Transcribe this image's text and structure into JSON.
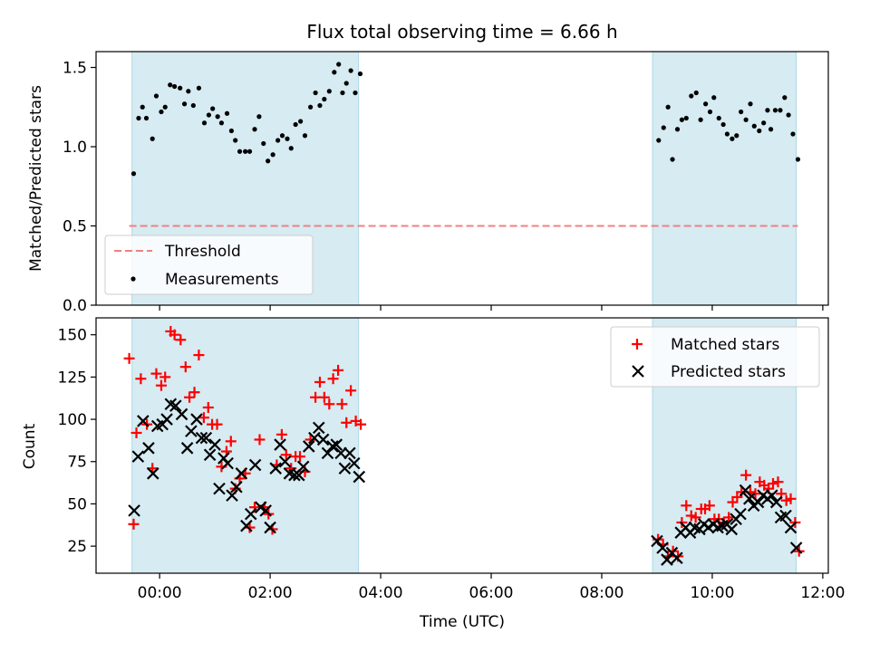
{
  "title": "Flux total observing time = 6.66 h",
  "xlabel": "Time (UTC)",
  "x_ticks": [
    "00:00",
    "02:00",
    "04:00",
    "06:00",
    "08:00",
    "10:00",
    "12:00"
  ],
  "chart_data": [
    {
      "type": "scatter",
      "title": "Flux total observing time = 6.66 h",
      "ylabel": "Matched/Predicted stars",
      "xlabel": "",
      "x_unit": "hours (UTC)",
      "xlim": [
        -1.15,
        12.1
      ],
      "ylim": [
        0,
        1.6
      ],
      "yticks": [
        "0.0",
        "0.5",
        "1.0",
        "1.5"
      ],
      "legend": {
        "position": "lower-left",
        "entries": [
          "Threshold",
          "Measurements"
        ]
      },
      "shaded_intervals": [
        [
          -0.5,
          3.6
        ],
        [
          8.92,
          11.52
        ]
      ],
      "threshold": {
        "name": "Threshold",
        "value": 0.5,
        "x_range": [
          -0.55,
          11.55
        ],
        "color": "#f08080"
      },
      "measurements": {
        "name": "Measurements",
        "color": "#000000",
        "points": [
          [
            -0.47,
            0.83
          ],
          [
            -0.38,
            1.18
          ],
          [
            -0.31,
            1.25
          ],
          [
            -0.24,
            1.18
          ],
          [
            -0.13,
            1.05
          ],
          [
            -0.06,
            1.32
          ],
          [
            0.03,
            1.22
          ],
          [
            0.1,
            1.25
          ],
          [
            0.19,
            1.39
          ],
          [
            0.27,
            1.38
          ],
          [
            0.37,
            1.37
          ],
          [
            0.45,
            1.27
          ],
          [
            0.52,
            1.35
          ],
          [
            0.61,
            1.26
          ],
          [
            0.71,
            1.37
          ],
          [
            0.81,
            1.15
          ],
          [
            0.89,
            1.2
          ],
          [
            0.96,
            1.24
          ],
          [
            1.05,
            1.19
          ],
          [
            1.12,
            1.15
          ],
          [
            1.22,
            1.21
          ],
          [
            1.3,
            1.1
          ],
          [
            1.37,
            1.04
          ],
          [
            1.45,
            0.97
          ],
          [
            1.55,
            0.97
          ],
          [
            1.63,
            0.97
          ],
          [
            1.72,
            1.11
          ],
          [
            1.8,
            1.19
          ],
          [
            1.88,
            1.02
          ],
          [
            1.96,
            0.91
          ],
          [
            2.05,
            0.95
          ],
          [
            2.14,
            1.04
          ],
          [
            2.22,
            1.07
          ],
          [
            2.31,
            1.05
          ],
          [
            2.38,
            0.99
          ],
          [
            2.46,
            1.14
          ],
          [
            2.55,
            1.16
          ],
          [
            2.63,
            1.07
          ],
          [
            2.73,
            1.25
          ],
          [
            2.82,
            1.34
          ],
          [
            2.9,
            1.26
          ],
          [
            2.98,
            1.3
          ],
          [
            3.07,
            1.35
          ],
          [
            3.16,
            1.47
          ],
          [
            3.24,
            1.52
          ],
          [
            3.31,
            1.34
          ],
          [
            3.38,
            1.4
          ],
          [
            3.46,
            1.48
          ],
          [
            3.54,
            1.34
          ],
          [
            3.63,
            1.46
          ],
          [
            9.03,
            1.04
          ],
          [
            9.12,
            1.12
          ],
          [
            9.2,
            1.25
          ],
          [
            9.28,
            0.92
          ],
          [
            9.37,
            1.11
          ],
          [
            9.45,
            1.17
          ],
          [
            9.53,
            1.18
          ],
          [
            9.62,
            1.32
          ],
          [
            9.71,
            1.34
          ],
          [
            9.79,
            1.17
          ],
          [
            9.88,
            1.27
          ],
          [
            9.96,
            1.22
          ],
          [
            10.03,
            1.31
          ],
          [
            10.12,
            1.18
          ],
          [
            10.2,
            1.14
          ],
          [
            10.27,
            1.08
          ],
          [
            10.36,
            1.05
          ],
          [
            10.44,
            1.07
          ],
          [
            10.52,
            1.22
          ],
          [
            10.61,
            1.17
          ],
          [
            10.69,
            1.27
          ],
          [
            10.76,
            1.13
          ],
          [
            10.85,
            1.1
          ],
          [
            10.93,
            1.15
          ],
          [
            11.0,
            1.23
          ],
          [
            11.06,
            1.11
          ],
          [
            11.14,
            1.23
          ],
          [
            11.23,
            1.23
          ],
          [
            11.31,
            1.31
          ],
          [
            11.38,
            1.2
          ],
          [
            11.46,
            1.08
          ],
          [
            11.55,
            0.92
          ]
        ]
      }
    },
    {
      "type": "scatter",
      "ylabel": "Count",
      "xlabel": "Time (UTC)",
      "x_unit": "hours (UTC)",
      "xlim": [
        -1.15,
        12.1
      ],
      "ylim": [
        9,
        160
      ],
      "yticks": [
        "25",
        "50",
        "75",
        "100",
        "125",
        "150"
      ],
      "legend": {
        "position": "top-right",
        "entries": [
          "Matched stars",
          "Predicted stars"
        ]
      },
      "shaded_intervals": [
        [
          -0.5,
          3.6
        ],
        [
          8.92,
          11.52
        ]
      ],
      "series": [
        {
          "name": "Matched stars",
          "marker": "+",
          "color": "#ff0000",
          "points": [
            [
              -0.55,
              136
            ],
            [
              -0.47,
              38
            ],
            [
              -0.42,
              92
            ],
            [
              -0.34,
              124
            ],
            [
              -0.23,
              97
            ],
            [
              -0.13,
              71
            ],
            [
              -0.06,
              127
            ],
            [
              0.03,
              120
            ],
            [
              0.1,
              125
            ],
            [
              0.2,
              152
            ],
            [
              0.27,
              150
            ],
            [
              0.38,
              147
            ],
            [
              0.47,
              131
            ],
            [
              0.54,
              113
            ],
            [
              0.63,
              116
            ],
            [
              0.71,
              138
            ],
            [
              0.8,
              101
            ],
            [
              0.88,
              107
            ],
            [
              0.95,
              97
            ],
            [
              1.04,
              97
            ],
            [
              1.12,
              72
            ],
            [
              1.21,
              81
            ],
            [
              1.29,
              87
            ],
            [
              1.37,
              59
            ],
            [
              1.45,
              65
            ],
            [
              1.55,
              68
            ],
            [
              1.63,
              36
            ],
            [
              1.72,
              48
            ],
            [
              1.81,
              88
            ],
            [
              1.9,
              48
            ],
            [
              1.97,
              44
            ],
            [
              2.04,
              35
            ],
            [
              2.12,
              73
            ],
            [
              2.21,
              91
            ],
            [
              2.29,
              79
            ],
            [
              2.38,
              71
            ],
            [
              2.46,
              78
            ],
            [
              2.54,
              78
            ],
            [
              2.63,
              69
            ],
            [
              2.73,
              88
            ],
            [
              2.82,
              113
            ],
            [
              2.9,
              122
            ],
            [
              2.98,
              113
            ],
            [
              3.07,
              109
            ],
            [
              3.14,
              124
            ],
            [
              3.23,
              129
            ],
            [
              3.3,
              109
            ],
            [
              3.38,
              98
            ],
            [
              3.46,
              117
            ],
            [
              3.55,
              99
            ],
            [
              3.64,
              97
            ],
            [
              9.02,
              29
            ],
            [
              9.11,
              26
            ],
            [
              9.2,
              19
            ],
            [
              9.29,
              22
            ],
            [
              9.38,
              19
            ],
            [
              9.45,
              39
            ],
            [
              9.53,
              49
            ],
            [
              9.62,
              43
            ],
            [
              9.7,
              42
            ],
            [
              9.8,
              47
            ],
            [
              9.87,
              47
            ],
            [
              9.95,
              49
            ],
            [
              10.04,
              41
            ],
            [
              10.12,
              41
            ],
            [
              10.21,
              39
            ],
            [
              10.3,
              42
            ],
            [
              10.37,
              51
            ],
            [
              10.45,
              54
            ],
            [
              10.53,
              57
            ],
            [
              10.61,
              67
            ],
            [
              10.69,
              57
            ],
            [
              10.78,
              56
            ],
            [
              10.86,
              63
            ],
            [
              10.94,
              61
            ],
            [
              11.02,
              59
            ],
            [
              11.1,
              62
            ],
            [
              11.19,
              63
            ],
            [
              11.25,
              56
            ],
            [
              11.34,
              52
            ],
            [
              11.42,
              53
            ],
            [
              11.5,
              39
            ],
            [
              11.57,
              22
            ]
          ]
        },
        {
          "name": "Predicted stars",
          "marker": "x",
          "color": "#000000",
          "points": [
            [
              -0.46,
              46
            ],
            [
              -0.39,
              78
            ],
            [
              -0.3,
              99
            ],
            [
              -0.2,
              83
            ],
            [
              -0.12,
              68
            ],
            [
              -0.04,
              96
            ],
            [
              0.05,
              97
            ],
            [
              0.13,
              100
            ],
            [
              0.2,
              109
            ],
            [
              0.29,
              108
            ],
            [
              0.4,
              103
            ],
            [
              0.5,
              83
            ],
            [
              0.57,
              93
            ],
            [
              0.67,
              100
            ],
            [
              0.76,
              89
            ],
            [
              0.84,
              89
            ],
            [
              0.91,
              79
            ],
            [
              1.0,
              85
            ],
            [
              1.08,
              59
            ],
            [
              1.16,
              77
            ],
            [
              1.23,
              74
            ],
            [
              1.31,
              55
            ],
            [
              1.39,
              60
            ],
            [
              1.48,
              68
            ],
            [
              1.57,
              37
            ],
            [
              1.65,
              44
            ],
            [
              1.73,
              73
            ],
            [
              1.83,
              48
            ],
            [
              1.92,
              46
            ],
            [
              2.0,
              36
            ],
            [
              2.1,
              71
            ],
            [
              2.18,
              85
            ],
            [
              2.27,
              75
            ],
            [
              2.35,
              68
            ],
            [
              2.44,
              67
            ],
            [
              2.52,
              67
            ],
            [
              2.6,
              72
            ],
            [
              2.7,
              84
            ],
            [
              2.8,
              89
            ],
            [
              2.88,
              95
            ],
            [
              2.96,
              88
            ],
            [
              3.04,
              80
            ],
            [
              3.13,
              84
            ],
            [
              3.2,
              85
            ],
            [
              3.28,
              80
            ],
            [
              3.35,
              71
            ],
            [
              3.44,
              80
            ],
            [
              3.52,
              74
            ],
            [
              3.61,
              66
            ],
            [
              9.0,
              28
            ],
            [
              9.1,
              24
            ],
            [
              9.18,
              17
            ],
            [
              9.27,
              21
            ],
            [
              9.36,
              18
            ],
            [
              9.43,
              33
            ],
            [
              9.52,
              36
            ],
            [
              9.6,
              33
            ],
            [
              9.68,
              36
            ],
            [
              9.77,
              35
            ],
            [
              9.85,
              38
            ],
            [
              9.93,
              36
            ],
            [
              10.02,
              38
            ],
            [
              10.1,
              36
            ],
            [
              10.18,
              37
            ],
            [
              10.27,
              38
            ],
            [
              10.35,
              35
            ],
            [
              10.43,
              41
            ],
            [
              10.51,
              44
            ],
            [
              10.6,
              58
            ],
            [
              10.67,
              53
            ],
            [
              10.75,
              49
            ],
            [
              10.83,
              51
            ],
            [
              10.92,
              55
            ],
            [
              11.0,
              53
            ],
            [
              11.08,
              55
            ],
            [
              11.16,
              51
            ],
            [
              11.24,
              42
            ],
            [
              11.33,
              43
            ],
            [
              11.42,
              36
            ],
            [
              11.52,
              24
            ]
          ]
        }
      ]
    }
  ]
}
